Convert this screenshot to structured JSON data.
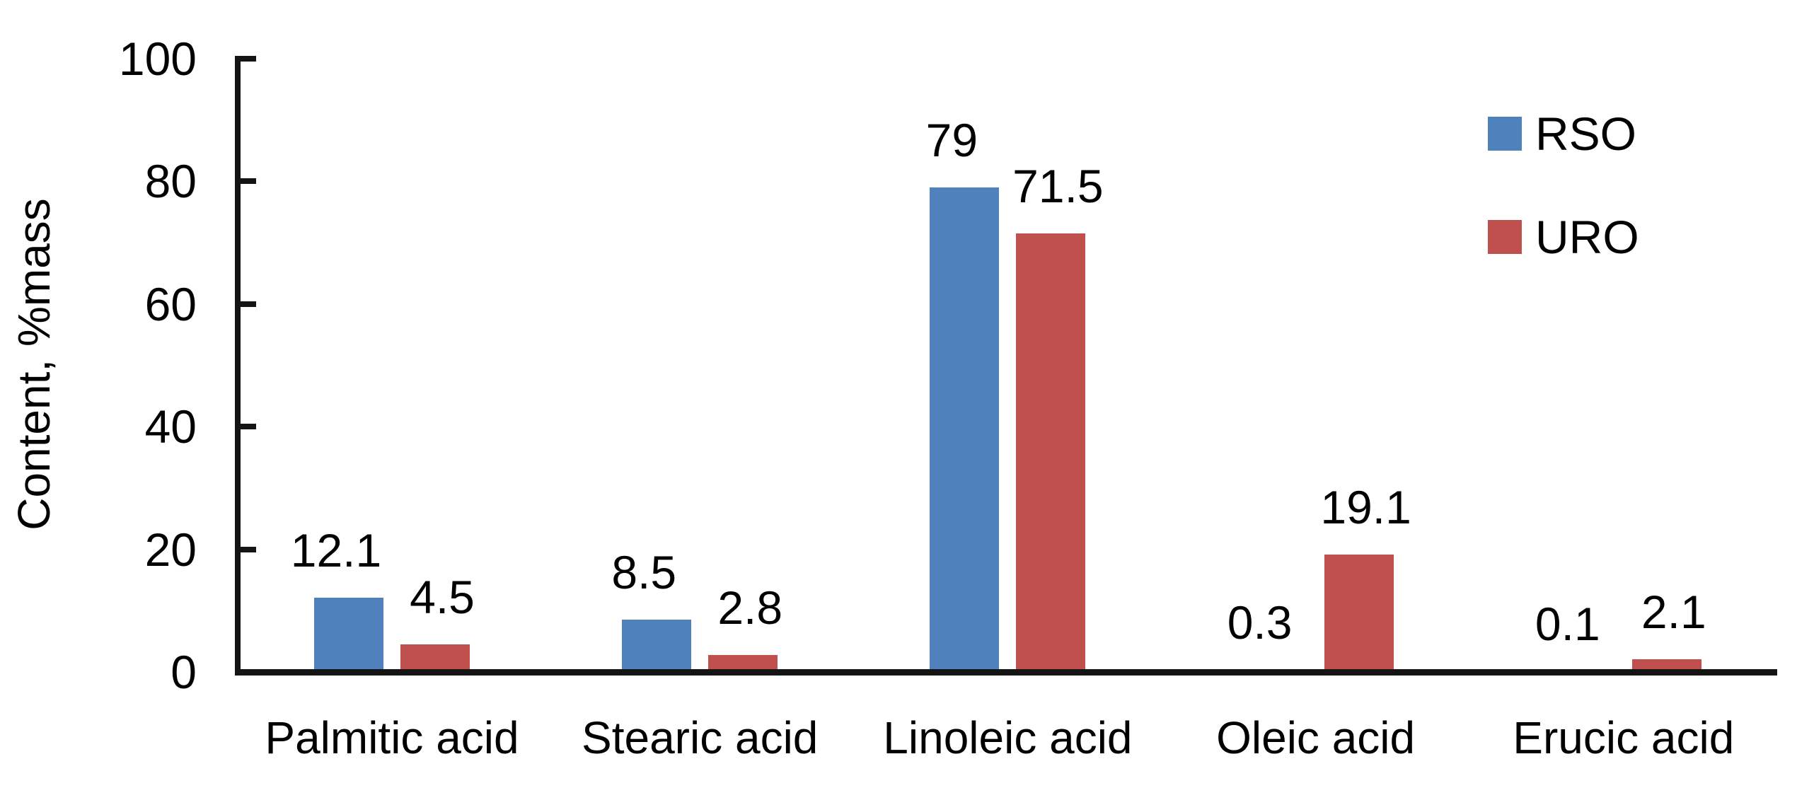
{
  "chart_data": {
    "type": "bar",
    "title": "",
    "xlabel": "",
    "ylabel": "Content, %mass",
    "ylim": [
      0,
      100
    ],
    "ytick_step": 20,
    "ytick_labels": [
      "0",
      "20",
      "40",
      "60",
      "80",
      "100"
    ],
    "grid": false,
    "legend_position": "top-right",
    "value_labels": true,
    "categories": [
      "Palmitic acid",
      "Stearic acid",
      "Linoleic acid",
      "Oleic acid",
      "Erucic acid"
    ],
    "series": [
      {
        "name": "RSO",
        "color": "#4F81BD",
        "values": [
          12.1,
          8.5,
          79,
          0.3,
          0.1
        ]
      },
      {
        "name": "URO",
        "color": "#C0504D",
        "values": [
          4.5,
          2.8,
          71.5,
          19.1,
          2.1
        ]
      }
    ]
  },
  "colors": {
    "axis": "#141414",
    "text": "#000000",
    "background": "#ffffff",
    "rso_blue": "#4F81BD",
    "uro_red": "#C0504D"
  }
}
